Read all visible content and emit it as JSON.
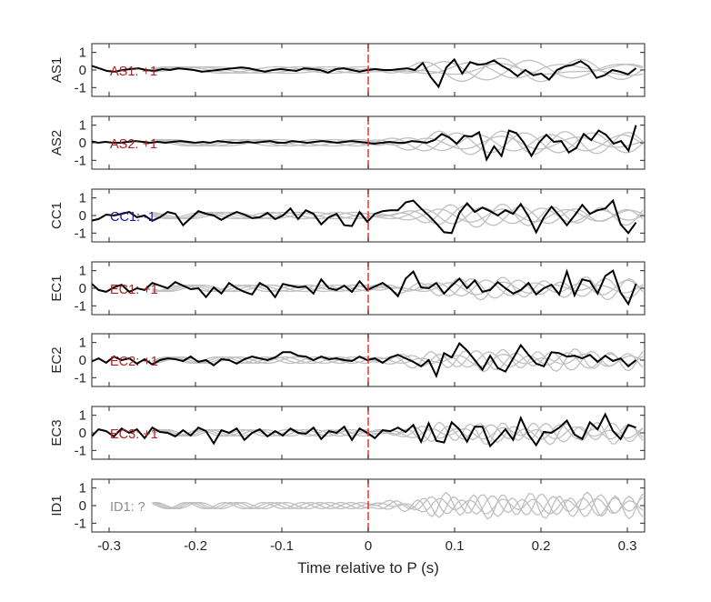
{
  "chart_data": {
    "type": "line",
    "xlabel": "Time relative to P (s)",
    "xlim": [
      -0.32,
      0.32
    ],
    "xticks": [
      -0.3,
      -0.2,
      -0.1,
      0,
      0.1,
      0.2,
      0.3
    ],
    "xtick_labels": [
      "-0.3",
      "-0.2",
      "-0.1",
      "0",
      "0.1",
      "0.2",
      "0.3"
    ],
    "ylim": [
      -1.5,
      1.5
    ],
    "yticks": [
      -1,
      0,
      1
    ],
    "ytick_labels": [
      "-1",
      "0",
      "1"
    ],
    "p_arrival_time": 0,
    "colors": {
      "trace": "#000000",
      "reference": "#c0c0c0",
      "p_marker": "#e8352b",
      "positive": "#b22222",
      "negative": "#1a1aa8",
      "unknown": "#8c8c8c"
    },
    "panels": [
      {
        "ylabel": "AS1",
        "annotation": "AS1: +1",
        "polarity": "positive",
        "trace": [
          0.35,
          0.25,
          0.1,
          -0.05,
          -0.1,
          0.0,
          0.05,
          0.1,
          0.0,
          -0.05,
          0.05,
          0.0,
          0.1,
          0.05,
          0.0,
          -0.1,
          -0.05,
          0.0,
          0.05,
          0.1,
          0.15,
          0.1,
          0.0,
          -0.1,
          0.0,
          0.05,
          0.0,
          -0.05,
          0.1,
          0.05,
          0.0,
          -0.15,
          0.05,
          0.1,
          0.0,
          -0.1,
          0.0,
          0.05,
          0.0,
          0.0,
          0.05,
          0.1,
          0.0,
          0.4,
          -0.4,
          -0.95,
          0.15,
          0.6,
          -0.2,
          0.45,
          0.3,
          0.35,
          0.55,
          0.25,
          0.0,
          -0.35,
          0.0,
          -0.3,
          -0.2,
          -0.55,
          0.0,
          0.2,
          0.3,
          0.5,
          0.2,
          -0.45,
          -0.3,
          0.0,
          -0.1,
          -0.25,
          0.1
        ]
      },
      {
        "ylabel": "AS2",
        "annotation": "AS2: +1",
        "polarity": "positive",
        "trace": [
          0.05,
          0.1,
          0.0,
          0.05,
          0.0,
          0.0,
          0.05,
          0.1,
          0.05,
          0.0,
          0.05,
          0.0,
          0.05,
          0.1,
          0.05,
          0.0,
          0.05,
          0.0,
          0.1,
          0.05,
          0.0,
          0.0,
          0.05,
          0.0,
          0.05,
          0.1,
          0.0,
          0.0,
          0.1,
          0.05,
          0.0,
          0.05,
          0.1,
          0.05,
          0.0,
          0.05,
          0.1,
          0.05,
          0.0,
          -0.05,
          0.0,
          0.05,
          0.0,
          0.0,
          0.1,
          0.05,
          0.0,
          0.15,
          0.5,
          0.3,
          -0.05,
          0.4,
          0.35,
          0.6,
          -0.95,
          -0.2,
          -0.75,
          0.7,
          0.55,
          0.0,
          -0.75,
          0.0,
          0.45,
          0.05,
          0.1,
          -0.55,
          -0.3,
          0.5,
          0.15,
          0.7,
          0.45,
          -0.05,
          0.1,
          -0.45,
          1.0
        ]
      },
      {
        "ylabel": "CC1",
        "annotation": "CC1: -1",
        "polarity": "negative",
        "trace": [
          0.1,
          -0.3,
          -0.2,
          0.05,
          0.0,
          0.1,
          0.2,
          -0.1,
          0.0,
          -0.3,
          -0.1,
          0.2,
          0.1,
          -0.55,
          -0.15,
          0.25,
          0.1,
          0.0,
          -0.25,
          0.0,
          0.2,
          0.05,
          -0.15,
          -0.1,
          0.15,
          -0.2,
          0.0,
          0.4,
          -0.2,
          0.3,
          0.1,
          -0.5,
          -0.1,
          0.1,
          -0.55,
          -0.6,
          0.2,
          -0.35,
          0.1,
          0.25,
          0.3,
          0.3,
          0.75,
          0.85,
          0.4,
          0.0,
          -0.45,
          -0.95,
          -1.0,
          0.15,
          0.7,
          0.2,
          0.45,
          0.25,
          0.0,
          0.3,
          0.1,
          0.65,
          -0.05,
          -0.95,
          -0.1,
          0.5,
          0.0,
          -0.55,
          0.0,
          0.6,
          0.1,
          0.3,
          0.4,
          0.85,
          -0.5,
          -1.0,
          -0.4
        ]
      },
      {
        "ylabel": "EC1",
        "annotation": "EC1: +1",
        "polarity": "positive",
        "trace": [
          0.2,
          0.3,
          -0.1,
          -0.2,
          0.05,
          0.2,
          -0.2,
          0.0,
          -0.1,
          0.3,
          0.15,
          0.0,
          0.35,
          0.15,
          -0.05,
          0.0,
          -0.5,
          0.05,
          -0.3,
          0.3,
          0.0,
          -0.2,
          -0.35,
          0.3,
          0.05,
          -0.5,
          0.25,
          0.15,
          0.05,
          0.1,
          -0.3,
          0.5,
          0.0,
          -0.1,
          0.15,
          -0.2,
          0.4,
          -0.1,
          0.1,
          0.3,
          0.0,
          -0.45,
          0.55,
          0.95,
          0.05,
          0.0,
          0.3,
          -0.3,
          0.15,
          0.55,
          0.0,
          0.45,
          -0.2,
          -0.1,
          0.35,
          0.0,
          -0.3,
          -0.1,
          0.3,
          -0.35,
          0.0,
          0.2,
          -0.35,
          0.95,
          -0.4,
          0.5,
          0.4,
          -0.3,
          0.7,
          1.0,
          -0.25,
          -0.9,
          0.25
        ]
      },
      {
        "ylabel": "EC2",
        "annotation": "EC2: +1",
        "polarity": "positive",
        "trace": [
          -0.25,
          -0.1,
          0.1,
          -0.15,
          0.2,
          0.0,
          0.1,
          -0.2,
          0.05,
          -0.25,
          0.0,
          0.1,
          0.05,
          -0.05,
          0.2,
          -0.1,
          0.0,
          -0.3,
          0.05,
          0.0,
          -0.2,
          0.05,
          0.2,
          0.1,
          0.0,
          0.15,
          0.45,
          0.45,
          0.25,
          0.2,
          0.0,
          0.2,
          0.05,
          0.1,
          0.0,
          -0.05,
          0.2,
          0.0,
          0.1,
          -0.15,
          0.15,
          0.3,
          0.1,
          -0.1,
          -0.35,
          0.0,
          -0.9,
          0.4,
          0.15,
          0.95,
          0.55,
          0.0,
          -0.55,
          0.25,
          -0.45,
          -0.65,
          0.1,
          0.85,
          0.3,
          -0.2,
          -0.35,
          0.45,
          0.4,
          0.2,
          0.25,
          0.1,
          0.3,
          -0.1,
          0.25,
          -0.05,
          0.1,
          -0.35,
          0.0
        ]
      },
      {
        "ylabel": "EC3",
        "annotation": "EC3: +1",
        "polarity": "positive",
        "trace": [
          0.3,
          -0.25,
          0.2,
          0.1,
          -0.2,
          0.25,
          0.0,
          0.2,
          -0.3,
          0.3,
          0.05,
          0.0,
          -0.2,
          0.15,
          -0.15,
          0.3,
          0.1,
          -0.6,
          0.15,
          0.0,
          0.25,
          -0.4,
          0.0,
          0.2,
          -0.2,
          0.1,
          -0.15,
          0.25,
          0.0,
          -0.05,
          0.3,
          -0.35,
          0.1,
          0.0,
          0.35,
          -0.4,
          0.25,
          0.0,
          -0.3,
          0.15,
          0.1,
          0.3,
          0.05,
          0.45,
          -0.5,
          0.55,
          -0.45,
          -0.55,
          0.6,
          0.2,
          -0.5,
          0.35,
          0.35,
          -0.75,
          -0.3,
          0.2,
          -0.4,
          0.85,
          -0.1,
          -0.7,
          0.05,
          0.0,
          0.3,
          0.7,
          -0.1,
          -0.35,
          0.6,
          0.2,
          1.05,
          0.1,
          -0.35,
          0.45,
          0.3
        ]
      },
      {
        "ylabel": "ID1",
        "annotation": "ID1: ?",
        "polarity": "unknown",
        "trace": []
      }
    ]
  }
}
